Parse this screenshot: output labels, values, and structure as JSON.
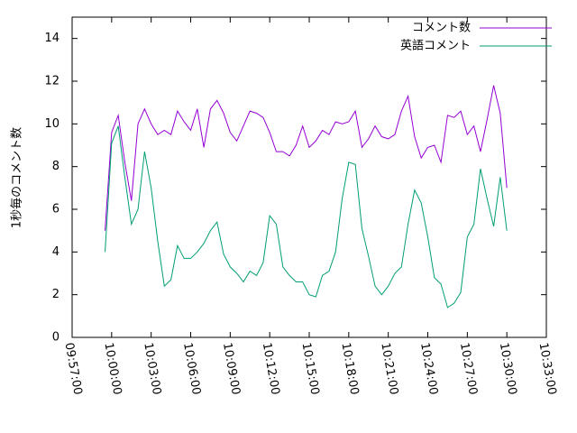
{
  "chart_data": {
    "type": "line",
    "y_label": "1秒毎のコメント数",
    "x": [
      "09:59:30",
      "10:00:00",
      "10:00:30",
      "10:01:00",
      "10:01:30",
      "10:02:00",
      "10:02:30",
      "10:03:00",
      "10:03:30",
      "10:04:00",
      "10:04:30",
      "10:05:00",
      "10:05:30",
      "10:06:00",
      "10:06:30",
      "10:07:00",
      "10:07:30",
      "10:08:00",
      "10:08:30",
      "10:09:00",
      "10:09:30",
      "10:10:00",
      "10:10:30",
      "10:11:00",
      "10:11:30",
      "10:12:00",
      "10:12:30",
      "10:13:00",
      "10:13:30",
      "10:14:00",
      "10:14:30",
      "10:15:00",
      "10:15:30",
      "10:16:00",
      "10:16:30",
      "10:17:00",
      "10:17:30",
      "10:18:00",
      "10:18:30",
      "10:19:00",
      "10:19:30",
      "10:20:00",
      "10:20:30",
      "10:21:00",
      "10:21:30",
      "10:22:00",
      "10:22:30",
      "10:23:00",
      "10:23:30",
      "10:24:00",
      "10:24:30",
      "10:25:00",
      "10:25:30",
      "10:26:00",
      "10:26:30",
      "10:27:00",
      "10:27:30",
      "10:28:00",
      "10:28:30",
      "10:29:00",
      "10:29:30",
      "10:30:00"
    ],
    "series": [
      {
        "name": "コメント数",
        "color": "#9400d3",
        "values": [
          5.0,
          9.6,
          10.4,
          8.2,
          6.4,
          10.0,
          10.7,
          10.0,
          9.5,
          9.7,
          9.5,
          10.6,
          10.1,
          9.7,
          10.7,
          8.9,
          10.7,
          11.1,
          10.5,
          9.6,
          9.2,
          9.9,
          10.6,
          10.5,
          10.3,
          9.6,
          8.7,
          8.7,
          8.5,
          9.0,
          9.9,
          8.9,
          9.2,
          9.7,
          9.5,
          10.1,
          10.0,
          10.1,
          10.6,
          8.9,
          9.3,
          9.9,
          9.4,
          9.3,
          9.5,
          10.6,
          11.3,
          9.4,
          8.4,
          8.9,
          9.0,
          8.2,
          10.4,
          10.3,
          10.6,
          9.5,
          9.9,
          8.7,
          10.2,
          11.8,
          10.5,
          7.0
        ]
      },
      {
        "name": "英語コメント",
        "color": "#009e73",
        "values": [
          4.0,
          9.1,
          9.9,
          7.5,
          5.3,
          6.0,
          8.7,
          7.0,
          4.5,
          2.4,
          2.7,
          4.3,
          3.7,
          3.7,
          4.0,
          4.4,
          5.0,
          5.4,
          3.9,
          3.3,
          3.0,
          2.6,
          3.1,
          2.9,
          3.5,
          5.7,
          5.3,
          3.3,
          2.9,
          2.6,
          2.6,
          2.0,
          1.9,
          2.9,
          3.1,
          4.0,
          6.5,
          8.2,
          8.1,
          5.1,
          3.8,
          2.4,
          2.0,
          2.4,
          3.0,
          3.3,
          5.3,
          6.9,
          6.3,
          4.7,
          2.8,
          2.5,
          1.4,
          1.6,
          2.1,
          4.7,
          5.3,
          7.9,
          6.5,
          5.2,
          7.5,
          5.0
        ]
      }
    ],
    "xlim": [
      "09:57:00",
      "10:33:00"
    ],
    "xticks": [
      "09:57:00",
      "10:00:00",
      "10:03:00",
      "10:06:00",
      "10:09:00",
      "10:12:00",
      "10:15:00",
      "10:18:00",
      "10:21:00",
      "10:24:00",
      "10:27:00",
      "10:30:00",
      "10:33:00"
    ],
    "ylim": [
      0,
      15
    ],
    "yticks": [
      0,
      2,
      4,
      6,
      8,
      10,
      12,
      14
    ],
    "legend": "top-right"
  }
}
